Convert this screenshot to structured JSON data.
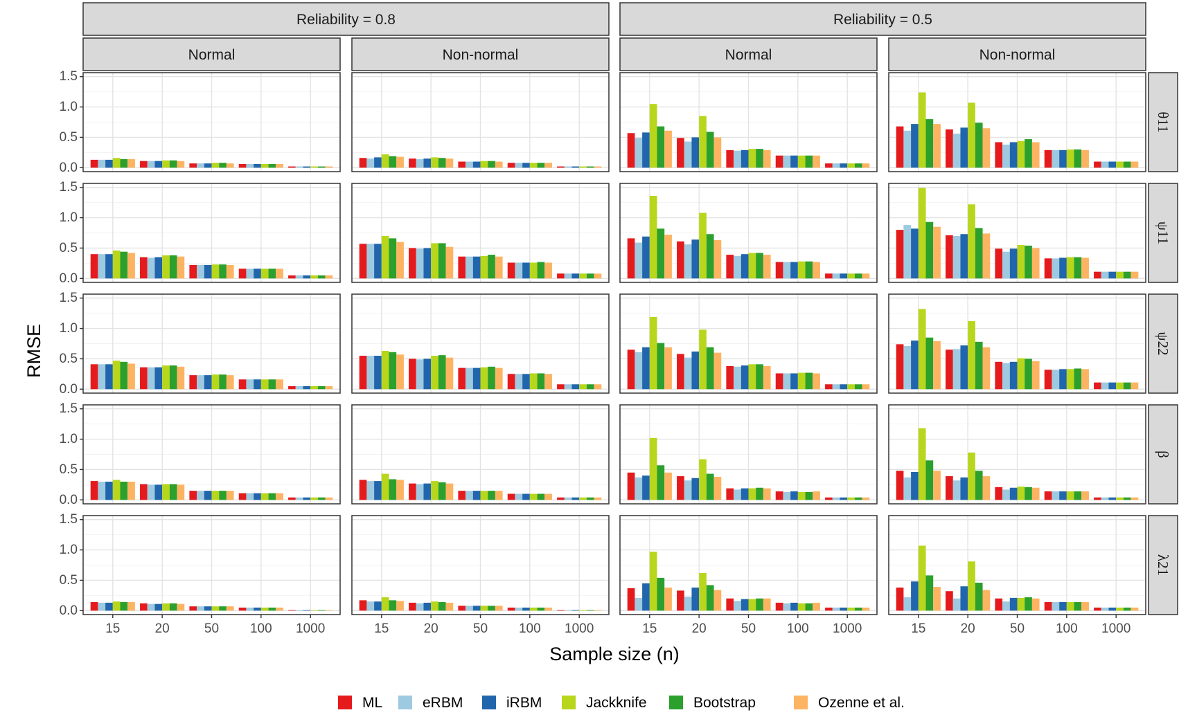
{
  "chart_data": {
    "type": "bar",
    "layout": "faceted grid",
    "xlabel": "Sample size (n)",
    "ylabel": "RMSE",
    "ylim": [
      0,
      1.5
    ],
    "yticks": [
      "0.0",
      "0.5",
      "1.0",
      "1.5"
    ],
    "categories": [
      "15",
      "20",
      "50",
      "100",
      "1000"
    ],
    "col_groups": [
      {
        "label": "Reliability = 0.8",
        "subcols": [
          "Normal",
          "Non-normal"
        ]
      },
      {
        "label": "Reliability = 0.5",
        "subcols": [
          "Normal",
          "Non-normal"
        ]
      }
    ],
    "rows": [
      "θ11",
      "ψ11",
      "ψ22",
      "β",
      "λ21"
    ],
    "methods": [
      "ML",
      "eRBM",
      "iRBM",
      "Jackknife",
      "Bootstrap",
      "Ozenne et al."
    ],
    "colors": [
      "#E41A1C",
      "#9ECAE1",
      "#2166AC",
      "#B8D61C",
      "#2CA02C",
      "#FDB462"
    ],
    "legend_position": "bottom",
    "values": [
      [
        [
          [
            0.13,
            0.13,
            0.13,
            0.16,
            0.14,
            0.14
          ],
          [
            0.11,
            0.11,
            0.11,
            0.12,
            0.12,
            0.11
          ],
          [
            0.07,
            0.07,
            0.07,
            0.08,
            0.08,
            0.07
          ],
          [
            0.06,
            0.06,
            0.06,
            0.06,
            0.06,
            0.06
          ],
          [
            0.02,
            0.02,
            0.02,
            0.02,
            0.02,
            0.02
          ]
        ],
        [
          [
            0.16,
            0.15,
            0.17,
            0.22,
            0.19,
            0.18
          ],
          [
            0.15,
            0.14,
            0.15,
            0.17,
            0.16,
            0.15
          ],
          [
            0.1,
            0.1,
            0.1,
            0.11,
            0.11,
            0.1
          ],
          [
            0.08,
            0.08,
            0.08,
            0.08,
            0.08,
            0.08
          ],
          [
            0.02,
            0.02,
            0.02,
            0.02,
            0.02,
            0.02
          ]
        ],
        [
          [
            0.57,
            0.49,
            0.58,
            1.05,
            0.68,
            0.61
          ],
          [
            0.49,
            0.43,
            0.5,
            0.85,
            0.59,
            0.5
          ],
          [
            0.29,
            0.28,
            0.29,
            0.31,
            0.31,
            0.29
          ],
          [
            0.2,
            0.2,
            0.2,
            0.2,
            0.2,
            0.2
          ],
          [
            0.07,
            0.07,
            0.07,
            0.07,
            0.07,
            0.07
          ]
        ],
        [
          [
            0.68,
            0.61,
            0.72,
            1.24,
            0.8,
            0.72
          ],
          [
            0.63,
            0.56,
            0.66,
            1.07,
            0.74,
            0.65
          ],
          [
            0.42,
            0.38,
            0.42,
            0.44,
            0.47,
            0.42
          ],
          [
            0.29,
            0.29,
            0.29,
            0.3,
            0.3,
            0.29
          ],
          [
            0.1,
            0.1,
            0.1,
            0.1,
            0.1,
            0.1
          ]
        ]
      ],
      [
        [
          [
            0.4,
            0.4,
            0.4,
            0.46,
            0.44,
            0.42
          ],
          [
            0.35,
            0.34,
            0.35,
            0.38,
            0.38,
            0.36
          ],
          [
            0.22,
            0.22,
            0.22,
            0.23,
            0.23,
            0.22
          ],
          [
            0.16,
            0.16,
            0.16,
            0.16,
            0.16,
            0.16
          ],
          [
            0.05,
            0.05,
            0.05,
            0.05,
            0.05,
            0.05
          ]
        ],
        [
          [
            0.57,
            0.57,
            0.57,
            0.7,
            0.66,
            0.6
          ],
          [
            0.5,
            0.49,
            0.5,
            0.58,
            0.58,
            0.52
          ],
          [
            0.36,
            0.36,
            0.36,
            0.37,
            0.39,
            0.36
          ],
          [
            0.26,
            0.26,
            0.26,
            0.26,
            0.27,
            0.26
          ],
          [
            0.08,
            0.08,
            0.08,
            0.08,
            0.08,
            0.08
          ]
        ],
        [
          [
            0.66,
            0.59,
            0.69,
            1.36,
            0.82,
            0.72
          ],
          [
            0.61,
            0.56,
            0.64,
            1.08,
            0.73,
            0.63
          ],
          [
            0.39,
            0.37,
            0.4,
            0.42,
            0.42,
            0.39
          ],
          [
            0.27,
            0.27,
            0.27,
            0.28,
            0.28,
            0.27
          ],
          [
            0.08,
            0.08,
            0.08,
            0.08,
            0.08,
            0.08
          ]
        ],
        [
          [
            0.8,
            0.88,
            0.82,
            1.49,
            0.93,
            0.85
          ],
          [
            0.71,
            0.7,
            0.73,
            1.22,
            0.83,
            0.74
          ],
          [
            0.49,
            0.44,
            0.49,
            0.55,
            0.54,
            0.5
          ],
          [
            0.33,
            0.33,
            0.34,
            0.35,
            0.35,
            0.34
          ],
          [
            0.11,
            0.11,
            0.11,
            0.11,
            0.11,
            0.11
          ]
        ]
      ],
      [
        [
          [
            0.41,
            0.41,
            0.41,
            0.47,
            0.45,
            0.42
          ],
          [
            0.36,
            0.36,
            0.36,
            0.39,
            0.39,
            0.37
          ],
          [
            0.23,
            0.23,
            0.23,
            0.24,
            0.24,
            0.23
          ],
          [
            0.16,
            0.16,
            0.16,
            0.16,
            0.16,
            0.16
          ],
          [
            0.05,
            0.05,
            0.05,
            0.05,
            0.05,
            0.05
          ]
        ],
        [
          [
            0.55,
            0.55,
            0.55,
            0.63,
            0.61,
            0.57
          ],
          [
            0.5,
            0.49,
            0.5,
            0.55,
            0.56,
            0.52
          ],
          [
            0.35,
            0.35,
            0.35,
            0.36,
            0.37,
            0.35
          ],
          [
            0.25,
            0.25,
            0.25,
            0.26,
            0.26,
            0.25
          ],
          [
            0.08,
            0.08,
            0.08,
            0.08,
            0.08,
            0.08
          ]
        ],
        [
          [
            0.65,
            0.61,
            0.69,
            1.19,
            0.76,
            0.69
          ],
          [
            0.58,
            0.52,
            0.62,
            0.98,
            0.69,
            0.6
          ],
          [
            0.38,
            0.37,
            0.39,
            0.41,
            0.41,
            0.38
          ],
          [
            0.26,
            0.26,
            0.26,
            0.27,
            0.27,
            0.26
          ],
          [
            0.08,
            0.08,
            0.08,
            0.08,
            0.08,
            0.08
          ]
        ],
        [
          [
            0.74,
            0.71,
            0.8,
            1.32,
            0.85,
            0.79
          ],
          [
            0.65,
            0.66,
            0.72,
            1.12,
            0.78,
            0.69
          ],
          [
            0.45,
            0.43,
            0.45,
            0.51,
            0.5,
            0.46
          ],
          [
            0.32,
            0.32,
            0.33,
            0.33,
            0.34,
            0.33
          ],
          [
            0.11,
            0.11,
            0.11,
            0.11,
            0.11,
            0.11
          ]
        ]
      ],
      [
        [
          [
            0.31,
            0.3,
            0.3,
            0.33,
            0.3,
            0.3
          ],
          [
            0.26,
            0.25,
            0.25,
            0.26,
            0.26,
            0.25
          ],
          [
            0.15,
            0.15,
            0.15,
            0.15,
            0.15,
            0.15
          ],
          [
            0.11,
            0.11,
            0.11,
            0.11,
            0.11,
            0.11
          ],
          [
            0.04,
            0.04,
            0.04,
            0.04,
            0.04,
            0.04
          ]
        ],
        [
          [
            0.33,
            0.31,
            0.31,
            0.43,
            0.34,
            0.33
          ],
          [
            0.27,
            0.26,
            0.27,
            0.31,
            0.29,
            0.27
          ],
          [
            0.15,
            0.15,
            0.15,
            0.15,
            0.15,
            0.15
          ],
          [
            0.1,
            0.1,
            0.1,
            0.1,
            0.1,
            0.1
          ],
          [
            0.04,
            0.04,
            0.04,
            0.04,
            0.04,
            0.04
          ]
        ],
        [
          [
            0.45,
            0.37,
            0.4,
            1.02,
            0.57,
            0.45
          ],
          [
            0.39,
            0.32,
            0.36,
            0.67,
            0.43,
            0.38
          ],
          [
            0.19,
            0.17,
            0.19,
            0.19,
            0.2,
            0.19
          ],
          [
            0.14,
            0.13,
            0.14,
            0.13,
            0.13,
            0.14
          ],
          [
            0.04,
            0.04,
            0.04,
            0.04,
            0.04,
            0.04
          ]
        ],
        [
          [
            0.48,
            0.37,
            0.46,
            1.18,
            0.65,
            0.48
          ],
          [
            0.39,
            0.32,
            0.37,
            0.78,
            0.48,
            0.39
          ],
          [
            0.21,
            0.17,
            0.2,
            0.22,
            0.21,
            0.2
          ],
          [
            0.14,
            0.14,
            0.14,
            0.14,
            0.14,
            0.14
          ],
          [
            0.04,
            0.04,
            0.04,
            0.04,
            0.04,
            0.04
          ]
        ]
      ],
      [
        [
          [
            0.14,
            0.13,
            0.13,
            0.15,
            0.14,
            0.14
          ],
          [
            0.12,
            0.11,
            0.11,
            0.12,
            0.12,
            0.11
          ],
          [
            0.07,
            0.07,
            0.07,
            0.07,
            0.07,
            0.07
          ],
          [
            0.05,
            0.05,
            0.05,
            0.05,
            0.05,
            0.05
          ],
          [
            0.01,
            0.01,
            0.01,
            0.01,
            0.01,
            0.01
          ]
        ],
        [
          [
            0.17,
            0.15,
            0.15,
            0.22,
            0.17,
            0.16
          ],
          [
            0.13,
            0.12,
            0.13,
            0.15,
            0.14,
            0.13
          ],
          [
            0.08,
            0.08,
            0.08,
            0.08,
            0.08,
            0.08
          ],
          [
            0.05,
            0.05,
            0.05,
            0.05,
            0.05,
            0.05
          ],
          [
            0.01,
            0.01,
            0.01,
            0.01,
            0.01,
            0.01
          ]
        ],
        [
          [
            0.37,
            0.21,
            0.45,
            0.97,
            0.54,
            0.38
          ],
          [
            0.33,
            0.23,
            0.38,
            0.62,
            0.42,
            0.34
          ],
          [
            0.2,
            0.16,
            0.19,
            0.19,
            0.2,
            0.2
          ],
          [
            0.13,
            0.12,
            0.13,
            0.12,
            0.12,
            0.13
          ],
          [
            0.05,
            0.05,
            0.05,
            0.05,
            0.05,
            0.05
          ]
        ],
        [
          [
            0.38,
            0.22,
            0.48,
            1.07,
            0.58,
            0.39
          ],
          [
            0.32,
            0.2,
            0.4,
            0.81,
            0.46,
            0.34
          ],
          [
            0.2,
            0.15,
            0.21,
            0.21,
            0.22,
            0.2
          ],
          [
            0.14,
            0.14,
            0.14,
            0.14,
            0.14,
            0.14
          ],
          [
            0.05,
            0.05,
            0.05,
            0.05,
            0.05,
            0.05
          ]
        ]
      ]
    ]
  }
}
